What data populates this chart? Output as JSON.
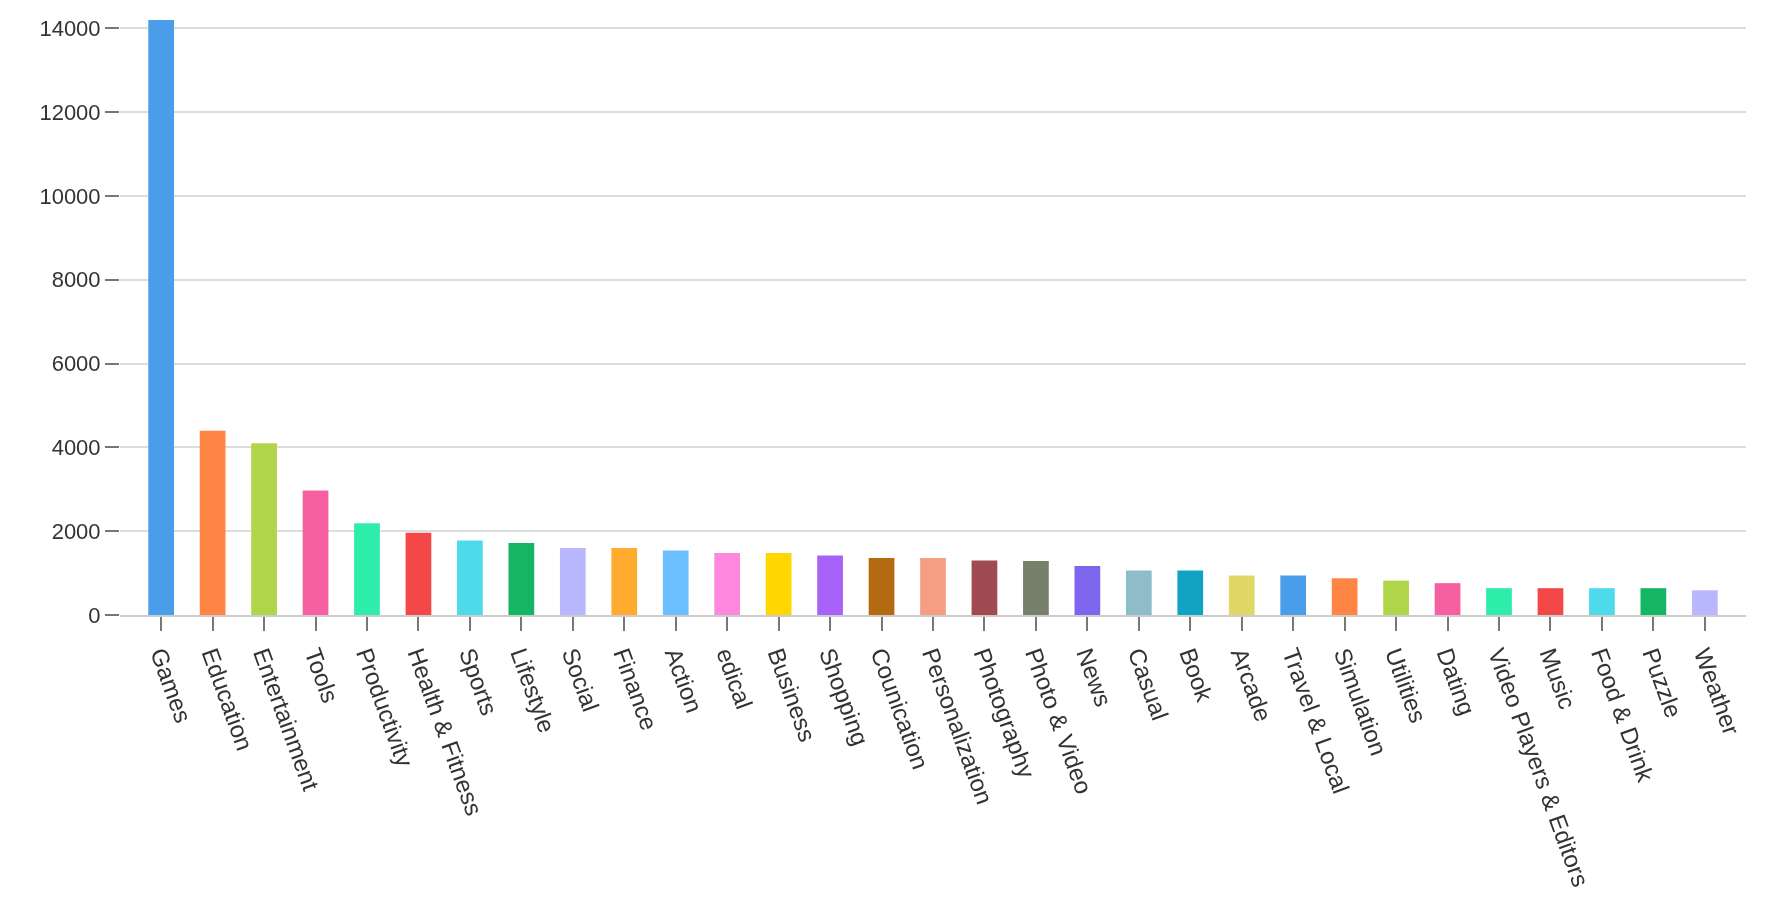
{
  "chart_data": {
    "type": "bar",
    "categories": [
      "Games",
      "Education",
      "Entertainment",
      "Tools",
      "Productivity",
      "Health & Fitness",
      "Sports",
      "Lifestyle",
      "Social",
      "Finance",
      "Action",
      "edical",
      "Business",
      "Shopping",
      "Counication",
      "Personalization",
      "Photography",
      "Photo & Video",
      "News",
      "Casual",
      "Book",
      "Arcade",
      "Travel & Local",
      "Simulation",
      "Utilities",
      "Dating",
      "Video Players & Editors",
      "Music",
      "Food & Drink",
      "Puzzle",
      "Weather"
    ],
    "values": [
      14200,
      4400,
      4100,
      2970,
      2190,
      1960,
      1780,
      1720,
      1600,
      1600,
      1540,
      1480,
      1480,
      1420,
      1360,
      1360,
      1300,
      1290,
      1170,
      1060,
      1060,
      940,
      940,
      880,
      820,
      760,
      640,
      640,
      640,
      640,
      590
    ],
    "colors": [
      "#4a9de8",
      "#ff8544",
      "#b0d44a",
      "#f760a0",
      "#2eedaa",
      "#f44848",
      "#4ddbec",
      "#14b563",
      "#b9b7fd",
      "#ffab30",
      "#6bbfff",
      "#ff88dd",
      "#ffd600",
      "#a763f7",
      "#b36a10",
      "#f59e84",
      "#a04a52",
      "#767f69",
      "#7d65ee",
      "#8fbccb",
      "#10a3c4",
      "#e0d766",
      "#4a9de8",
      "#ff8544",
      "#b0d44a",
      "#f760a0",
      "#2eedaa",
      "#f44848",
      "#4ddbec",
      "#14b563",
      "#b9b7fd"
    ],
    "ylim": [
      0,
      14200
    ],
    "yticks": [
      0,
      2000,
      4000,
      6000,
      8000,
      10000,
      12000,
      14000
    ],
    "grid": "y"
  }
}
